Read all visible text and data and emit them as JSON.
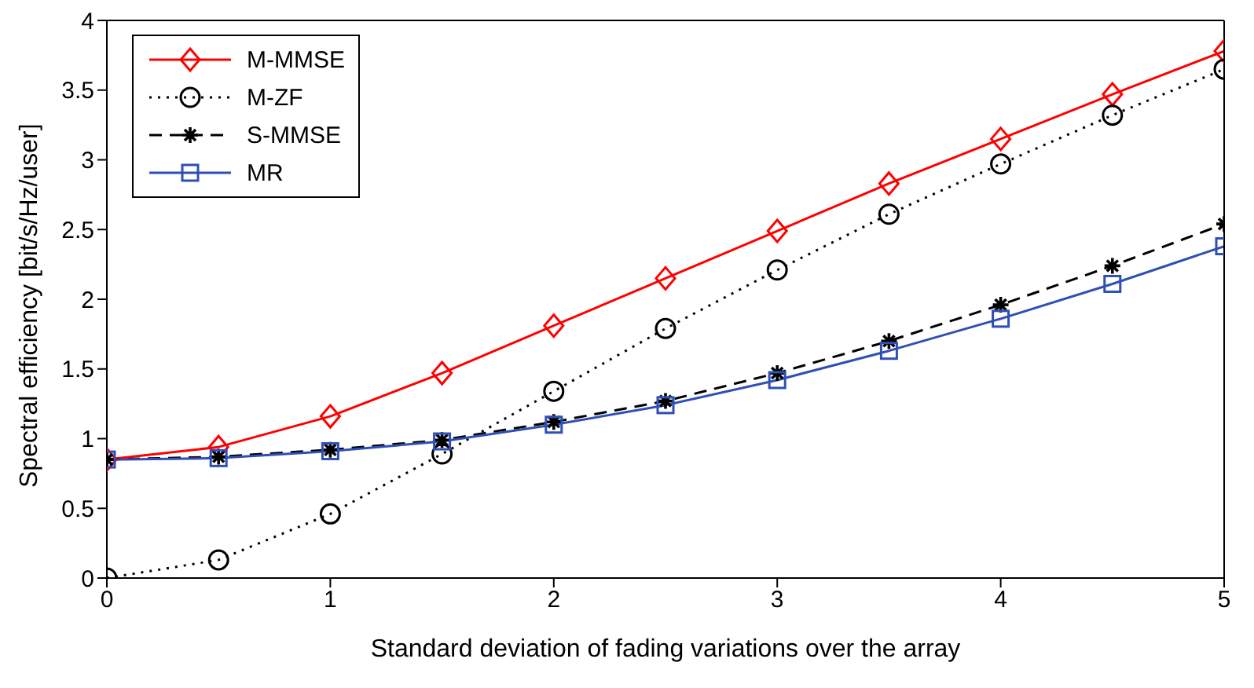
{
  "chart_data": {
    "type": "line",
    "xlabel": "Standard deviation of fading variations over the array",
    "ylabel": "Spectral efficiency [bit/s/Hz/user]",
    "x": [
      0,
      0.5,
      1,
      1.5,
      2,
      2.5,
      3,
      3.5,
      4,
      4.5,
      5
    ],
    "xlim": [
      0,
      5
    ],
    "xticks": [
      0,
      1,
      2,
      3,
      4,
      5
    ],
    "ylim": [
      0,
      4
    ],
    "yticks": [
      0,
      0.5,
      1,
      1.5,
      2,
      2.5,
      3,
      3.5,
      4
    ],
    "grid": false,
    "legend": "top left",
    "series": [
      {
        "name": "M-MMSE",
        "color": "#ff0000",
        "marker": "diamond",
        "line_style": "solid",
        "values": [
          0.85,
          0.94,
          1.16,
          1.47,
          1.81,
          2.15,
          2.49,
          2.83,
          3.15,
          3.47,
          3.78
        ]
      },
      {
        "name": "M-ZF",
        "color": "#000000",
        "marker": "circle",
        "line_style": "dotted",
        "values": [
          0,
          0.13,
          0.46,
          0.89,
          1.34,
          1.79,
          2.21,
          2.61,
          2.97,
          3.32,
          3.65
        ]
      },
      {
        "name": "S-MMSE",
        "color": "#000000",
        "marker": "cross",
        "line_style": "dashed",
        "values": [
          0.85,
          0.87,
          0.92,
          0.99,
          1.12,
          1.27,
          1.47,
          1.7,
          1.96,
          2.24,
          2.54
        ]
      },
      {
        "name": "MR",
        "color": "#2f4fb5",
        "marker": "square",
        "line_style": "solid",
        "values": [
          0.85,
          0.86,
          0.91,
          0.98,
          1.1,
          1.24,
          1.42,
          1.63,
          1.86,
          2.11,
          2.38
        ]
      }
    ]
  }
}
